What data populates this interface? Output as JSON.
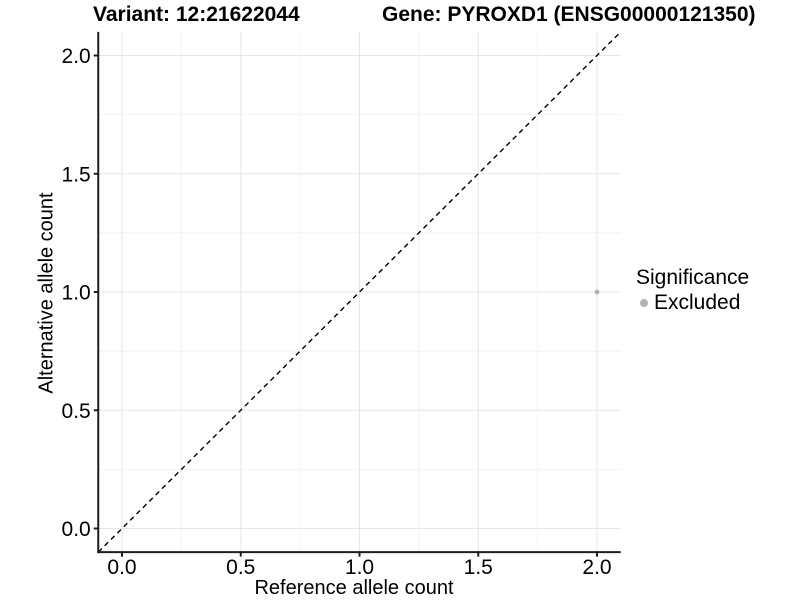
{
  "header": {
    "title_left": "Variant: 12:21622044",
    "title_right": "Gene: PYROXD1 (ENSG00000121350)"
  },
  "colors": {
    "background": "#ffffff",
    "axis_line": "#1f1f1f",
    "text": "#000000",
    "grid_major": "#e6e6e6",
    "grid_minor": "#f2f2f2"
  },
  "chart_data": {
    "type": "scatter",
    "title_left": "Variant: 12:21622044",
    "title_right": "Gene: PYROXD1 (ENSG00000121350)",
    "xlabel": "Reference allele count",
    "ylabel": "Alternative allele count",
    "xlim": [
      -0.1,
      2.1
    ],
    "ylim": [
      -0.1,
      2.1
    ],
    "x_ticks": {
      "values": [
        0,
        0.5,
        1,
        1.5,
        2
      ],
      "labels": [
        "0.0",
        "0.5",
        "1.0",
        "1.5",
        "2.0"
      ]
    },
    "y_ticks": {
      "values": [
        0,
        0.5,
        1,
        1.5,
        2
      ],
      "labels": [
        "0.0",
        "0.5",
        "1.0",
        "1.5",
        "2.0"
      ]
    },
    "x_minor": [
      0.25,
      0.75,
      1.25,
      1.75
    ],
    "y_minor": [
      0.25,
      0.75,
      1.25,
      1.75
    ],
    "grid": "major+minor",
    "reference_line": {
      "kind": "identity y=x",
      "style": "dashed",
      "color": "#000000"
    },
    "series": [
      {
        "name": "Excluded",
        "color": "#b3b3b3",
        "points": [
          {
            "x": 2.0,
            "y": 1.0
          }
        ]
      }
    ],
    "legend": {
      "title": "Significance",
      "position": "right",
      "entries": [
        {
          "label": "Excluded",
          "color": "#b3b3b3"
        }
      ]
    }
  }
}
